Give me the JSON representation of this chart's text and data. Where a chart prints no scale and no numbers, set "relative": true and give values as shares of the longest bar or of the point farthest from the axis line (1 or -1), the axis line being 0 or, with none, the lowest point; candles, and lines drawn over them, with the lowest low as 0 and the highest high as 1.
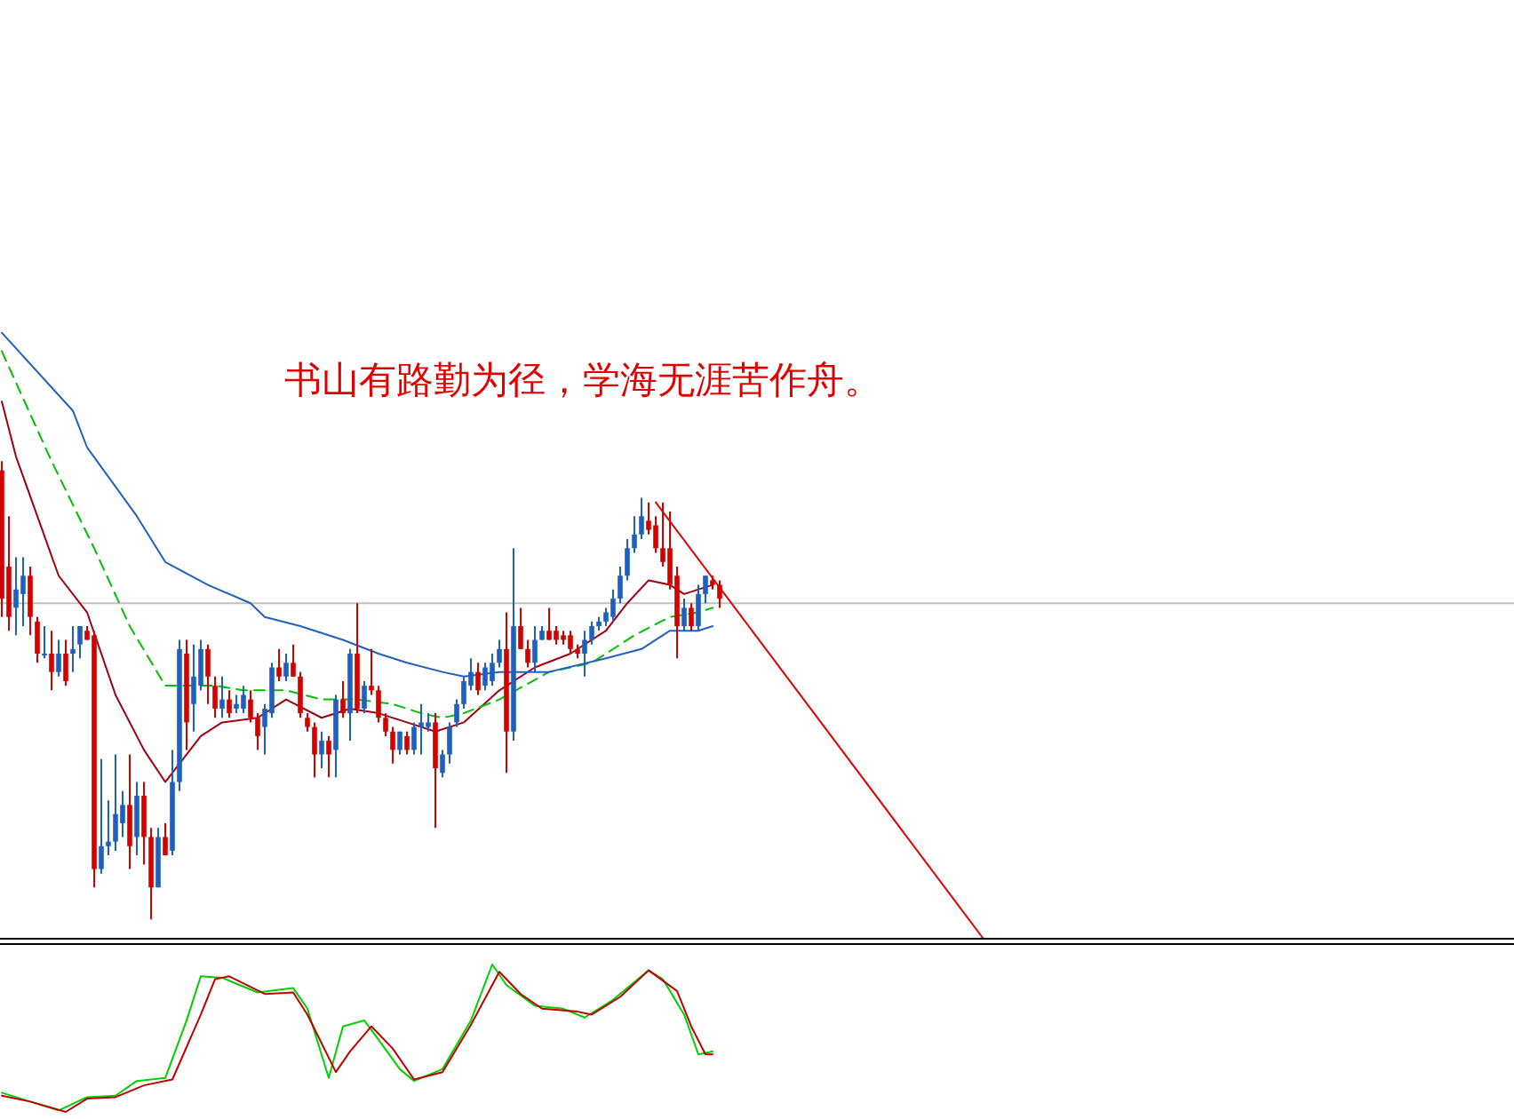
{
  "chart_data": [
    {
      "type": "candlestick",
      "relative": true,
      "annotations": [
        "书山有路勤为径，学海无涯苦作舟。"
      ],
      "categories": [
        null,
        null,
        null,
        null,
        null,
        null,
        null,
        null,
        null,
        null,
        null,
        null,
        null,
        null,
        null,
        null,
        null,
        null,
        null,
        null,
        null,
        null,
        null,
        null,
        null,
        null,
        null,
        null,
        null,
        null,
        null,
        null,
        null,
        null,
        null,
        null,
        null,
        null,
        null,
        null,
        null,
        null,
        null,
        null,
        null,
        null,
        null,
        null,
        null,
        null,
        null,
        null,
        null,
        null,
        null,
        null,
        null,
        null,
        null,
        null,
        null,
        null,
        null,
        null,
        null,
        null,
        null,
        null,
        null,
        null,
        null,
        null,
        null,
        null,
        null,
        null,
        null,
        null,
        null,
        null,
        null,
        null,
        null,
        null,
        null,
        null,
        null,
        null,
        null,
        null,
        null,
        null,
        null,
        null,
        null,
        null,
        null,
        null,
        null,
        null,
        null,
        null,
        null,
        null,
        null,
        null,
        null,
        null,
        null,
        null,
        null,
        null,
        null,
        null,
        null,
        null,
        null,
        null,
        null,
        null,
        null,
        null,
        null,
        null,
        null,
        null,
        null,
        null,
        null,
        null,
        null,
        null,
        null,
        null,
        null,
        null,
        null,
        null,
        null
      ],
      "ohlc": [
        [
          0.98,
          1.0,
          0.66,
          0.7
        ],
        [
          0.77,
          0.88,
          0.63,
          0.66
        ],
        [
          0.68,
          0.79,
          0.62,
          0.72
        ],
        [
          0.71,
          0.79,
          0.64,
          0.75
        ],
        [
          0.75,
          0.77,
          0.62,
          0.66
        ],
        [
          0.65,
          0.66,
          0.56,
          0.58
        ],
        [
          0.58,
          0.64,
          0.57,
          0.58
        ],
        [
          0.58,
          0.63,
          0.5,
          0.54
        ],
        [
          0.54,
          0.61,
          0.53,
          0.58
        ],
        [
          0.58,
          0.61,
          0.51,
          0.52
        ],
        [
          0.58,
          0.64,
          0.54,
          0.59
        ],
        [
          0.6,
          0.64,
          0.57,
          0.64
        ],
        [
          0.63,
          0.64,
          0.61,
          0.61
        ],
        [
          0.62,
          0.63,
          0.07,
          0.11
        ],
        [
          0.11,
          0.35,
          0.1,
          0.16
        ],
        [
          0.16,
          0.26,
          0.14,
          0.17
        ],
        [
          0.17,
          0.36,
          0.15,
          0.23
        ],
        [
          0.21,
          0.28,
          0.18,
          0.25
        ],
        [
          0.25,
          0.36,
          0.11,
          0.16
        ],
        [
          0.18,
          0.3,
          0.14,
          0.27
        ],
        [
          0.27,
          0.3,
          0.12,
          0.18
        ],
        [
          0.18,
          0.2,
          0.0,
          0.07
        ],
        [
          0.07,
          0.2,
          0.07,
          0.18
        ],
        [
          0.18,
          0.21,
          0.14,
          0.14
        ],
        [
          0.15,
          0.37,
          0.14,
          0.3
        ],
        [
          0.3,
          0.61,
          0.28,
          0.59
        ],
        [
          0.58,
          0.61,
          0.37,
          0.43
        ],
        [
          0.47,
          0.6,
          0.41,
          0.53
        ],
        [
          0.51,
          0.61,
          0.5,
          0.59
        ],
        [
          0.59,
          0.6,
          0.47,
          0.53
        ],
        [
          0.51,
          0.53,
          0.44,
          0.46
        ],
        [
          0.46,
          0.53,
          0.44,
          0.48
        ],
        [
          0.48,
          0.5,
          0.44,
          0.45
        ],
        [
          0.46,
          0.49,
          0.45,
          0.47
        ],
        [
          0.46,
          0.51,
          0.45,
          0.49
        ],
        [
          0.48,
          0.5,
          0.43,
          0.44
        ],
        [
          0.44,
          0.45,
          0.37,
          0.4
        ],
        [
          0.42,
          0.47,
          0.36,
          0.46
        ],
        [
          0.45,
          0.56,
          0.44,
          0.55
        ],
        [
          0.55,
          0.59,
          0.52,
          0.53
        ],
        [
          0.53,
          0.58,
          0.52,
          0.56
        ],
        [
          0.56,
          0.6,
          0.53,
          0.53
        ],
        [
          0.53,
          0.54,
          0.44,
          0.45
        ],
        [
          0.44,
          0.45,
          0.41,
          0.42
        ],
        [
          0.42,
          0.43,
          0.31,
          0.36
        ],
        [
          0.36,
          0.41,
          0.33,
          0.39
        ],
        [
          0.39,
          0.4,
          0.31,
          0.36
        ],
        [
          0.37,
          0.49,
          0.31,
          0.48
        ],
        [
          0.48,
          0.52,
          0.44,
          0.45
        ],
        [
          0.45,
          0.59,
          0.39,
          0.58
        ],
        [
          0.58,
          0.69,
          0.45,
          0.46
        ],
        [
          0.46,
          0.52,
          0.45,
          0.51
        ],
        [
          0.51,
          0.59,
          0.49,
          0.5
        ],
        [
          0.5,
          0.51,
          0.43,
          0.44
        ],
        [
          0.44,
          0.45,
          0.4,
          0.41
        ],
        [
          0.41,
          0.42,
          0.34,
          0.37
        ],
        [
          0.37,
          0.41,
          0.36,
          0.41
        ],
        [
          0.4,
          0.41,
          0.36,
          0.37
        ],
        [
          0.37,
          0.43,
          0.36,
          0.42
        ],
        [
          0.42,
          0.47,
          0.36,
          0.43
        ],
        [
          0.42,
          0.45,
          0.41,
          0.43
        ],
        [
          0.43,
          0.45,
          0.2,
          0.33
        ],
        [
          0.32,
          0.37,
          0.31,
          0.36
        ],
        [
          0.36,
          0.43,
          0.34,
          0.42
        ],
        [
          0.43,
          0.48,
          0.42,
          0.47
        ],
        [
          0.47,
          0.53,
          0.46,
          0.52
        ],
        [
          0.51,
          0.57,
          0.5,
          0.54
        ],
        [
          0.54,
          0.56,
          0.49,
          0.5
        ],
        [
          0.51,
          0.56,
          0.5,
          0.55
        ],
        [
          0.52,
          0.58,
          0.51,
          0.56
        ],
        [
          0.56,
          0.61,
          0.55,
          0.59
        ],
        [
          0.59,
          0.67,
          0.32,
          0.41
        ],
        [
          0.41,
          0.81,
          0.39,
          0.64
        ],
        [
          0.64,
          0.68,
          0.59,
          0.59
        ],
        [
          0.59,
          0.61,
          0.55,
          0.56
        ],
        [
          0.56,
          0.64,
          0.54,
          0.61
        ],
        [
          0.61,
          0.64,
          0.61,
          0.63
        ],
        [
          0.63,
          0.68,
          0.61,
          0.61
        ],
        [
          0.63,
          0.64,
          0.6,
          0.61
        ],
        [
          0.62,
          0.63,
          0.6,
          0.61
        ],
        [
          0.62,
          0.63,
          0.58,
          0.59
        ],
        [
          0.59,
          0.6,
          0.57,
          0.58
        ],
        [
          0.58,
          0.63,
          0.53,
          0.61
        ],
        [
          0.61,
          0.65,
          0.6,
          0.64
        ],
        [
          0.64,
          0.66,
          0.63,
          0.65
        ],
        [
          0.65,
          0.68,
          0.64,
          0.67
        ],
        [
          0.66,
          0.72,
          0.65,
          0.7
        ],
        [
          0.7,
          0.77,
          0.69,
          0.75
        ],
        [
          0.75,
          0.83,
          0.74,
          0.81
        ],
        [
          0.81,
          0.88,
          0.8,
          0.84
        ],
        [
          0.84,
          0.92,
          0.83,
          0.88
        ],
        [
          0.87,
          0.91,
          0.84,
          0.85
        ],
        [
          0.86,
          0.88,
          0.8,
          0.81
        ],
        [
          0.81,
          0.91,
          0.77,
          0.78
        ],
        [
          0.81,
          0.89,
          0.72,
          0.73
        ],
        [
          0.75,
          0.77,
          0.57,
          0.64
        ],
        [
          0.64,
          0.7,
          0.63,
          0.68
        ],
        [
          0.68,
          0.69,
          0.63,
          0.64
        ],
        [
          0.64,
          0.73,
          0.63,
          0.71
        ],
        [
          0.71,
          0.75,
          0.69,
          0.75
        ],
        [
          0.74,
          0.75,
          0.72,
          0.73
        ],
        [
          0.73,
          0.74,
          0.68,
          0.7
        ],
        null,
        null,
        null,
        null,
        null,
        null,
        null,
        null,
        null,
        null,
        null,
        null,
        null,
        null,
        null,
        null,
        null,
        null,
        null,
        null,
        null,
        null,
        null,
        null,
        null,
        null,
        null,
        null,
        null,
        null,
        null,
        null,
        null,
        null,
        null,
        null,
        null
      ],
      "colors": [
        "#d40000",
        "#d40000",
        "#1f5fbf",
        "#1f5fbf",
        "#d40000",
        "#d40000",
        "#1f5fbf",
        "#d40000",
        "#1f5fbf",
        "#d40000",
        "#1f5fbf",
        "#1f5fbf",
        "#d40000",
        "#d40000",
        "#1f5fbf",
        "#1f5fbf",
        "#1f5fbf",
        "#1f5fbf",
        "#d40000",
        "#1f5fbf",
        "#d40000",
        "#d40000",
        "#1f5fbf",
        "#d40000",
        "#1f5fbf",
        "#1f5fbf",
        "#d40000",
        "#1f5fbf",
        "#1f5fbf",
        "#d40000",
        "#d40000",
        "#1f5fbf",
        "#d40000",
        "#1f5fbf",
        "#1f5fbf",
        "#d40000",
        "#d40000",
        "#1f5fbf",
        "#1f5fbf",
        "#d40000",
        "#1f5fbf",
        "#d40000",
        "#d40000",
        "#d40000",
        "#d40000",
        "#1f5fbf",
        "#d40000",
        "#1f5fbf",
        "#d40000",
        "#1f5fbf",
        "#d40000",
        "#1f5fbf",
        "#d40000",
        "#d40000",
        "#d40000",
        "#d40000",
        "#1f5fbf",
        "#d40000",
        "#1f5fbf",
        "#1f5fbf",
        "#1f5fbf",
        "#d40000",
        "#1f5fbf",
        "#1f5fbf",
        "#1f5fbf",
        "#1f5fbf",
        "#1f5fbf",
        "#d40000",
        "#1f5fbf",
        "#1f5fbf",
        "#1f5fbf",
        "#d40000",
        "#1f5fbf",
        "#d40000",
        "#d40000",
        "#1f5fbf",
        "#1f5fbf",
        "#d40000",
        "#d40000",
        "#d40000",
        "#d40000",
        "#d40000",
        "#1f5fbf",
        "#1f5fbf",
        "#1f5fbf",
        "#1f5fbf",
        "#1f5fbf",
        "#1f5fbf",
        "#1f5fbf",
        "#1f5fbf",
        "#1f5fbf",
        "#d40000",
        "#d40000",
        "#d40000",
        "#d40000",
        "#d40000",
        "#1f5fbf",
        "#d40000",
        "#1f5fbf",
        "#1f5fbf",
        "#d40000",
        "#d40000",
        null,
        null,
        null,
        null,
        null,
        null,
        null,
        null,
        null,
        null,
        null,
        null,
        null,
        null,
        null,
        null,
        null,
        null,
        null,
        null,
        null,
        null,
        null,
        null,
        null,
        null,
        null,
        null,
        null,
        null,
        null,
        null,
        null,
        null,
        null,
        null,
        null
      ],
      "series": [
        {
          "type": "line",
          "color": "#a00010",
          "line_style": "solid",
          "values": [
            1.13,
            null,
            1.01,
            null,
            null,
            0.88,
            null,
            null,
            0.75,
            null,
            null,
            null,
            0.67,
            null,
            null,
            null,
            0.49,
            null,
            null,
            null,
            0.37,
            null,
            null,
            0.3,
            null,
            0.34,
            null,
            null,
            0.4,
            null,
            null,
            0.43,
            null,
            null,
            null,
            null,
            0.44,
            null,
            null,
            null,
            0.48,
            null,
            null,
            null,
            null,
            0.44,
            null,
            null,
            null,
            0.46,
            null,
            null,
            null,
            0.45,
            null,
            null,
            null,
            0.43,
            null,
            null,
            null,
            0.41,
            null,
            null,
            null,
            0.43,
            null,
            null,
            null,
            null,
            0.5,
            null,
            null,
            null,
            null,
            0.55,
            null,
            null,
            null,
            null,
            0.58,
            null,
            null,
            null,
            null,
            0.63,
            null,
            null,
            0.69,
            null,
            null,
            0.74,
            null,
            null,
            0.73,
            null,
            0.71,
            null,
            null,
            null,
            0.73,
            null,
            null,
            null,
            null,
            null,
            null,
            null,
            null,
            null,
            null,
            null,
            null,
            null,
            null,
            null,
            null,
            null,
            null,
            null,
            null,
            null,
            null,
            null,
            null,
            null,
            null,
            null,
            null,
            null,
            null,
            null,
            null,
            null,
            null,
            null,
            null,
            null,
            null
          ]
        },
        {
          "type": "line",
          "color": "#00c000",
          "line_style": "dashed",
          "values": [
            1.24,
            null,
            null,
            null,
            null,
            null,
            null,
            1.0,
            null,
            null,
            null,
            null,
            null,
            0.81,
            null,
            null,
            null,
            null,
            0.64,
            null,
            null,
            null,
            null,
            0.51,
            null,
            0.51,
            null,
            null,
            null,
            null,
            0.51,
            null,
            null,
            null,
            0.5,
            null,
            null,
            null,
            null,
            null,
            0.5,
            null,
            null,
            null,
            null,
            0.48,
            null,
            null,
            null,
            null,
            0.48,
            null,
            null,
            null,
            null,
            0.47,
            null,
            null,
            null,
            0.45,
            null,
            null,
            0.44,
            null,
            null,
            0.45,
            null,
            null,
            null,
            null,
            0.48,
            null,
            null,
            null,
            null,
            null,
            null,
            0.54,
            null,
            null,
            null,
            null,
            null,
            0.56,
            null,
            null,
            null,
            null,
            null,
            0.62,
            null,
            null,
            null,
            null,
            0.66,
            null,
            null,
            null,
            0.67,
            null,
            0.68,
            null,
            null,
            null,
            null,
            null,
            null,
            null,
            null,
            null,
            null,
            null,
            null,
            null,
            null,
            null,
            null,
            null,
            null,
            null,
            null,
            null,
            null,
            null,
            null,
            null,
            null,
            null,
            null,
            null,
            null,
            null,
            null,
            null,
            null,
            null,
            null,
            null,
            null
          ]
        },
        {
          "type": "line",
          "color": "#2060c0",
          "line_style": "solid",
          "values": [
            1.28,
            null,
            null,
            null,
            null,
            null,
            null,
            null,
            null,
            null,
            1.11,
            null,
            1.03,
            null,
            null,
            null,
            null,
            null,
            null,
            0.88,
            null,
            null,
            null,
            0.78,
            null,
            null,
            null,
            null,
            null,
            0.73,
            null,
            null,
            null,
            null,
            null,
            0.69,
            null,
            0.66,
            null,
            null,
            null,
            null,
            0.64,
            null,
            null,
            null,
            null,
            null,
            0.61,
            null,
            null,
            null,
            null,
            0.58,
            null,
            null,
            null,
            0.56,
            null,
            null,
            null,
            null,
            0.54,
            null,
            null,
            0.53,
            null,
            null,
            null,
            null,
            0.54,
            null,
            null,
            null,
            null,
            null,
            null,
            0.54,
            null,
            null,
            null,
            null,
            null,
            null,
            null,
            0.57,
            null,
            null,
            null,
            null,
            0.59,
            null,
            null,
            null,
            0.63,
            null,
            null,
            null,
            0.63,
            null,
            0.64,
            null,
            null,
            null,
            null,
            null,
            null,
            null,
            null,
            null,
            null,
            null,
            null,
            null,
            null,
            null,
            null,
            null,
            null,
            null,
            null,
            null,
            null,
            null,
            null,
            null,
            null,
            null,
            null,
            null,
            null,
            null,
            null,
            null,
            null,
            null,
            null,
            null,
            null
          ]
        },
        {
          "type": "line",
          "color": "#e00000",
          "line_style": "solid",
          "values": [
            null,
            null,
            null,
            null,
            null,
            null,
            null,
            null,
            null,
            null,
            null,
            null,
            null,
            null,
            null,
            null,
            null,
            null,
            null,
            null,
            null,
            null,
            null,
            null,
            null,
            null,
            null,
            null,
            null,
            null,
            null,
            null,
            null,
            null,
            null,
            null,
            null,
            null,
            null,
            null,
            null,
            null,
            null,
            null,
            null,
            null,
            null,
            null,
            null,
            null,
            null,
            null,
            null,
            null,
            null,
            null,
            null,
            null,
            null,
            null,
            null,
            null,
            null,
            null,
            null,
            null,
            null,
            null,
            null,
            null,
            null,
            null,
            null,
            null,
            null,
            null,
            null,
            null,
            null,
            null,
            null,
            null,
            null,
            null,
            null,
            null,
            null,
            null,
            null,
            null,
            null,
            null,
            0.91,
            null,
            null,
            null,
            null,
            null,
            null,
            null,
            null,
            null,
            null,
            null,
            null,
            null,
            null,
            null,
            null,
            null,
            null,
            null,
            null,
            null,
            null,
            null,
            null,
            null,
            null,
            null,
            null,
            null,
            null,
            null,
            null,
            null,
            null,
            null,
            null,
            null,
            null,
            null,
            null,
            null,
            null,
            null,
            null,
            null,
            -0.04
          ]
        }
      ],
      "ref_lines": [
        {
          "axis": "y",
          "value": 0.69,
          "color": "#c0c0c0"
        }
      ]
    },
    {
      "type": "line",
      "relative": true,
      "categories": [
        null,
        null,
        null,
        null,
        null,
        null,
        null,
        null,
        null,
        null,
        null,
        null,
        null,
        null,
        null,
        null,
        null,
        null,
        null,
        null,
        null,
        null,
        null,
        null,
        null,
        null,
        null,
        null,
        null,
        null,
        null,
        null,
        null,
        null,
        null,
        null,
        null,
        null,
        null,
        null,
        null,
        null,
        null,
        null,
        null,
        null,
        null,
        null,
        null,
        null,
        null,
        null,
        null,
        null,
        null,
        null,
        null,
        null,
        null,
        null,
        null,
        null,
        null,
        null,
        null,
        null,
        null,
        null,
        null,
        null,
        null,
        null,
        null,
        null,
        null,
        null,
        null,
        null,
        null,
        null,
        null,
        null,
        null,
        null,
        null,
        null,
        null,
        null,
        null,
        null,
        null,
        null,
        null,
        null,
        null,
        null,
        null,
        null,
        null,
        null,
        null,
        null,
        null,
        null,
        null,
        null,
        null,
        null,
        null,
        null,
        null,
        null,
        null,
        null,
        null,
        null,
        null,
        null,
        null,
        null,
        null,
        null,
        null,
        null,
        null,
        null,
        null,
        null,
        null,
        null,
        null,
        null,
        null,
        null,
        null,
        null,
        null,
        null,
        null
      ],
      "series": [
        {
          "color": "#00d000",
          "values": [
            0.13,
            null,
            null,
            null,
            0.07,
            null,
            null,
            null,
            0.01,
            null,
            null,
            null,
            0.1,
            null,
            null,
            null,
            0.11,
            null,
            null,
            0.21,
            null,
            null,
            null,
            0.23,
            null,
            null,
            0.62,
            null,
            0.92,
            null,
            null,
            0.91,
            null,
            null,
            null,
            null,
            0.81,
            null,
            null,
            null,
            null,
            0.84,
            null,
            0.7,
            null,
            null,
            0.23,
            null,
            0.58,
            null,
            null,
            0.62,
            null,
            0.49,
            null,
            null,
            0.29,
            null,
            0.21,
            null,
            null,
            null,
            0.29,
            null,
            null,
            null,
            0.62,
            null,
            null,
            1.0,
            null,
            0.86,
            null,
            null,
            null,
            0.72,
            null,
            null,
            null,
            0.7,
            null,
            null,
            0.64,
            null,
            null,
            null,
            0.76,
            null,
            null,
            null,
            null,
            0.96,
            null,
            0.9,
            null,
            null,
            0.66,
            null,
            0.39,
            null,
            0.41,
            null,
            null,
            null,
            null,
            null,
            null,
            null,
            null,
            null,
            null,
            null,
            null,
            null,
            null,
            null,
            null,
            null,
            null,
            null,
            null,
            null,
            null,
            null,
            null,
            null,
            null,
            null,
            null,
            null,
            null,
            null,
            null,
            null,
            null,
            null,
            null,
            null,
            null
          ]
        },
        {
          "color": "#c00000",
          "values": [
            0.11,
            null,
            null,
            null,
            0.07,
            null,
            null,
            null,
            null,
            0.0,
            null,
            null,
            0.09,
            null,
            null,
            null,
            0.1,
            null,
            null,
            null,
            0.18,
            null,
            null,
            null,
            0.22,
            null,
            null,
            null,
            0.66,
            null,
            0.9,
            null,
            0.92,
            null,
            null,
            null,
            null,
            0.8,
            null,
            null,
            null,
            0.81,
            null,
            0.66,
            null,
            null,
            null,
            0.27,
            null,
            0.41,
            null,
            null,
            0.58,
            null,
            null,
            0.43,
            null,
            null,
            0.22,
            null,
            null,
            null,
            0.27,
            null,
            null,
            null,
            0.59,
            null,
            null,
            null,
            0.95,
            null,
            null,
            0.8,
            null,
            null,
            0.7,
            null,
            null,
            null,
            null,
            0.68,
            null,
            0.66,
            null,
            null,
            null,
            0.78,
            null,
            null,
            null,
            0.96,
            null,
            null,
            null,
            0.82,
            null,
            0.58,
            null,
            0.39,
            0.39,
            null,
            null,
            null,
            null,
            null,
            null,
            null,
            null,
            null,
            null,
            null,
            null,
            null,
            null,
            null,
            null,
            null,
            null,
            null,
            null,
            null,
            null,
            null,
            null,
            null,
            null,
            null,
            null,
            null,
            null,
            null,
            null,
            null,
            null,
            null,
            null,
            null,
            null
          ]
        }
      ]
    }
  ]
}
